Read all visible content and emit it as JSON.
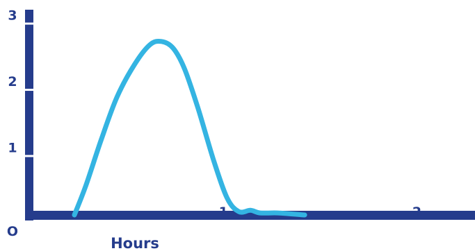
{
  "chart_data": {
    "type": "line",
    "title": "",
    "xlabel": "Hours",
    "ylabel": "",
    "xlim": [
      0,
      2.3
    ],
    "ylim": [
      0,
      3.1
    ],
    "x_ticks": [
      {
        "value": 1,
        "label": "1"
      },
      {
        "value": 2,
        "label": "2"
      }
    ],
    "y_ticks": [
      {
        "value": 1,
        "label": "1"
      },
      {
        "value": 2,
        "label": "2"
      },
      {
        "value": 3,
        "label": "3"
      }
    ],
    "origin_label": "O",
    "grid": false,
    "colors": {
      "axis": "#253c8c",
      "line": "#34b4e2",
      "text": "#253c8c"
    },
    "series": [
      {
        "values": [
          {
            "x": 0.23,
            "y": 0.0
          },
          {
            "x": 0.29,
            "y": 0.45
          },
          {
            "x": 0.37,
            "y": 1.15
          },
          {
            "x": 0.45,
            "y": 1.78
          },
          {
            "x": 0.54,
            "y": 2.27
          },
          {
            "x": 0.62,
            "y": 2.57
          },
          {
            "x": 0.68,
            "y": 2.62
          },
          {
            "x": 0.74,
            "y": 2.52
          },
          {
            "x": 0.8,
            "y": 2.2
          },
          {
            "x": 0.87,
            "y": 1.6
          },
          {
            "x": 0.95,
            "y": 0.82
          },
          {
            "x": 1.02,
            "y": 0.25
          },
          {
            "x": 1.08,
            "y": 0.05
          },
          {
            "x": 1.14,
            "y": 0.07
          },
          {
            "x": 1.19,
            "y": 0.03
          },
          {
            "x": 1.28,
            "y": 0.03
          },
          {
            "x": 1.42,
            "y": 0.0
          }
        ]
      }
    ]
  }
}
